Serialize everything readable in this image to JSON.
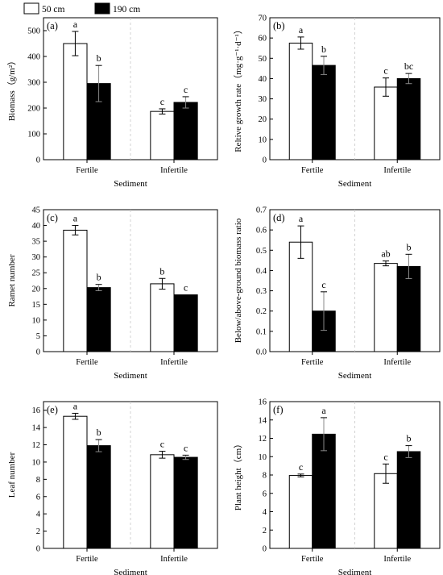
{
  "legend": {
    "items": [
      {
        "label": "50 cm",
        "color": "#ffffff"
      },
      {
        "label": "190 cm",
        "color": "#000000"
      }
    ]
  },
  "chart_data": [
    {
      "type": "bar",
      "panel_label": "(a)",
      "xlabel": "Sediment",
      "ylabel": "Biomass（g/m²）",
      "categories": [
        "Fertile",
        "Infertile"
      ],
      "ylim": [
        0,
        550
      ],
      "yticks": [
        0,
        100,
        200,
        300,
        400,
        500
      ],
      "series": [
        {
          "name": "50 cm",
          "values": [
            450,
            187
          ],
          "errors": [
            47,
            10
          ],
          "letters": [
            "a",
            "c"
          ]
        },
        {
          "name": "190 cm",
          "values": [
            295,
            222
          ],
          "errors": [
            70,
            22
          ],
          "letters": [
            "b",
            "c"
          ]
        }
      ]
    },
    {
      "type": "bar",
      "panel_label": "(b)",
      "xlabel": "Sediment",
      "ylabel": "Reltive growth rate（mg·g⁻¹·d⁻¹）",
      "categories": [
        "Fertile",
        "Infertile"
      ],
      "ylim": [
        0,
        70
      ],
      "yticks": [
        0,
        10,
        20,
        30,
        40,
        50,
        60,
        70
      ],
      "series": [
        {
          "name": "50 cm",
          "values": [
            57.5,
            35.8
          ],
          "errors": [
            3,
            4.5
          ],
          "letters": [
            "a",
            "c"
          ]
        },
        {
          "name": "190 cm",
          "values": [
            46.5,
            40
          ],
          "errors": [
            4.5,
            2.5
          ],
          "letters": [
            "b",
            "bc"
          ]
        }
      ]
    },
    {
      "type": "bar",
      "panel_label": "(c)",
      "xlabel": "Sediment",
      "ylabel": "Ramet number",
      "categories": [
        "Fertile",
        "Infertile"
      ],
      "ylim": [
        0,
        45
      ],
      "yticks": [
        0,
        5,
        10,
        15,
        20,
        25,
        30,
        35,
        40,
        45
      ],
      "series": [
        {
          "name": "50 cm",
          "values": [
            38.5,
            21.5
          ],
          "errors": [
            1.5,
            1.7
          ],
          "letters": [
            "a",
            "b"
          ]
        },
        {
          "name": "190 cm",
          "values": [
            20.3,
            18
          ],
          "errors": [
            1,
            0
          ],
          "letters": [
            "b",
            "c"
          ]
        }
      ]
    },
    {
      "type": "bar",
      "panel_label": "(d)",
      "xlabel": "Sediment",
      "ylabel": "Below/above-ground biomass ratio",
      "categories": [
        "Fertile",
        "Infertile"
      ],
      "ylim": [
        0,
        0.7
      ],
      "yticks": [
        "0.0",
        "0.1",
        "0.2",
        "0.3",
        "0.4",
        "0.5",
        "0.6",
        "0.7"
      ],
      "series": [
        {
          "name": "50 cm",
          "values": [
            0.54,
            0.435
          ],
          "errors": [
            0.08,
            0.012
          ],
          "letters": [
            "a",
            "ab"
          ]
        },
        {
          "name": "190 cm",
          "values": [
            0.2,
            0.42
          ],
          "errors": [
            0.095,
            0.06
          ],
          "letters": [
            "c",
            "b"
          ]
        }
      ]
    },
    {
      "type": "bar",
      "panel_label": "(e)",
      "xlabel": "Sediment",
      "ylabel": "Leaf number",
      "categories": [
        "Fertile",
        "Infertile"
      ],
      "ylim": [
        0,
        17
      ],
      "yticks": [
        0,
        2,
        4,
        6,
        8,
        10,
        12,
        14,
        16
      ],
      "series": [
        {
          "name": "50 cm",
          "values": [
            15.3,
            10.85
          ],
          "errors": [
            0.35,
            0.4
          ],
          "letters": [
            "a",
            "c"
          ]
        },
        {
          "name": "190 cm",
          "values": [
            11.9,
            10.55
          ],
          "errors": [
            0.7,
            0.25
          ],
          "letters": [
            "b",
            "c"
          ]
        }
      ]
    },
    {
      "type": "bar",
      "panel_label": "(f)",
      "xlabel": "Sediment",
      "ylabel": "Plant height（cm）",
      "categories": [
        "Fertile",
        "Infertile"
      ],
      "ylim": [
        0,
        16
      ],
      "yticks": [
        0,
        2,
        4,
        6,
        8,
        10,
        12,
        14,
        16
      ],
      "series": [
        {
          "name": "50 cm",
          "values": [
            7.95,
            8.15
          ],
          "errors": [
            0.15,
            1.05
          ],
          "letters": [
            "c",
            "c"
          ]
        },
        {
          "name": "190 cm",
          "values": [
            12.45,
            10.55
          ],
          "errors": [
            1.8,
            0.65
          ],
          "letters": [
            "a",
            "b"
          ]
        }
      ]
    }
  ]
}
